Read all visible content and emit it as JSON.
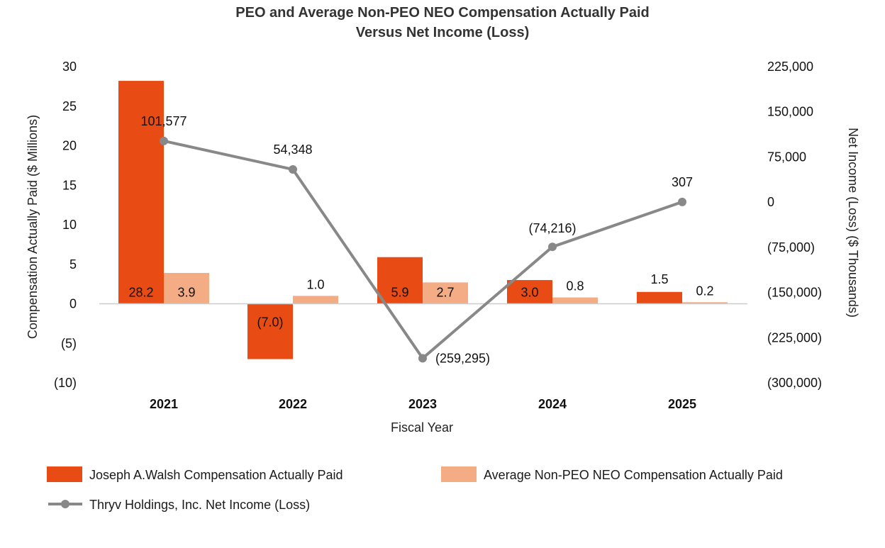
{
  "chart_data": {
    "type": "bar",
    "title": [
      "PEO and Average Non-PEO NEO Compensation Actually Paid",
      "Versus Net Income (Loss)"
    ],
    "xlabel": "Fiscal Year",
    "ylabel": "Compensation Actually Paid ($ Millions)",
    "y2label": "Net Income (Loss) ($ Thousands)",
    "categories": [
      "2021",
      "2022",
      "2023",
      "2024",
      "2025"
    ],
    "ylim": [
      -10,
      30
    ],
    "yticks": [
      30,
      25,
      20,
      15,
      10,
      5,
      0,
      -5,
      -10
    ],
    "ytick_labels": [
      "30",
      "25",
      "20",
      "15",
      "10",
      "5",
      "0",
      "(5)",
      "(10)"
    ],
    "y2lim": [
      -300000,
      225000
    ],
    "y2ticks": [
      225000,
      150000,
      75000,
      0,
      -75000,
      -150000,
      -225000,
      -300000
    ],
    "y2tick_labels": [
      "225,000",
      "150,000",
      "75,000",
      "0",
      "(75,000)",
      "(150,000)",
      "(225,000)",
      "(300,000)"
    ],
    "series": [
      {
        "name": "Joseph A.Walsh Compensation Actually Paid",
        "type": "bar",
        "axis": "left",
        "color": "#E84B14",
        "values": [
          28.2,
          -7.0,
          5.9,
          3.0,
          1.5
        ],
        "labels": [
          "28.2",
          "(7.0)",
          "5.9",
          "3.0",
          "1.5"
        ]
      },
      {
        "name": "Average Non-PEO NEO Compensation Actually Paid",
        "type": "bar",
        "axis": "left",
        "color": "#F4AC85",
        "values": [
          3.9,
          1.0,
          2.7,
          0.8,
          0.2
        ],
        "labels": [
          "3.9",
          "1.0",
          "2.7",
          "0.8",
          "0.2"
        ]
      },
      {
        "name": "Thryv Holdings, Inc. Net Income (Loss)",
        "type": "line",
        "axis": "right",
        "color": "#888888",
        "values": [
          101577,
          54348,
          -259295,
          -74216,
          307
        ],
        "labels": [
          "101,577",
          "54,348",
          "(259,295)",
          "(74,216)",
          "307"
        ]
      }
    ],
    "grid": false,
    "legend_position": "bottom"
  }
}
